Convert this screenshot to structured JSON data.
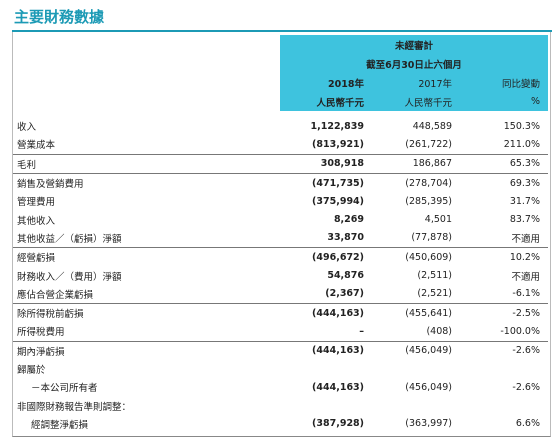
{
  "header": {
    "title": "主要財務數據"
  },
  "table": {
    "header": {
      "audit": "未經審計",
      "period": "截至6月30日止六個月",
      "years": [
        "2018年",
        "2017年",
        "同比變動"
      ],
      "units": [
        "人民幣千元",
        "人民幣千元",
        "%"
      ]
    },
    "rows": [
      [
        "收入",
        "1,122,839",
        "448,589",
        "150.3%"
      ],
      [
        "營業成本",
        "(813,921)",
        "(261,722)",
        "211.0%"
      ],
      [
        "毛利",
        "308,918",
        "186,867",
        "65.3%"
      ],
      [
        "銷售及營銷費用",
        "(471,735)",
        "(278,704)",
        "69.3%"
      ],
      [
        "管理費用",
        "(375,994)",
        "(285,395)",
        "31.7%"
      ],
      [
        "其他收入",
        "8,269",
        "4,501",
        "83.7%"
      ],
      [
        "其他收益／（虧損）淨額",
        "33,870",
        "(77,878)",
        "不適用"
      ],
      [
        "經營虧損",
        "(496,672)",
        "(450,609)",
        "10.2%"
      ],
      [
        "財務收入／（費用）淨額",
        "54,876",
        "(2,511)",
        "不適用"
      ],
      [
        "應佔合營企業虧損",
        "(2,367)",
        "(2,521)",
        "-6.1%"
      ],
      [
        "除所得稅前虧損",
        "(444,163)",
        "(455,641)",
        "-2.5%"
      ],
      [
        "所得稅費用",
        "–",
        "(408)",
        "-100.0%"
      ],
      [
        "期內淨虧損",
        "(444,163)",
        "(456,049)",
        "-2.6%"
      ],
      [
        "歸屬於"
      ],
      [
        "－本公司所有者",
        "(444,163)",
        "(456,049)",
        "-2.6%"
      ],
      [
        "非國際財務報告準則調整："
      ],
      [
        "經調整淨虧損",
        "(387,928)",
        "(363,997)",
        "6.6%"
      ]
    ]
  }
}
